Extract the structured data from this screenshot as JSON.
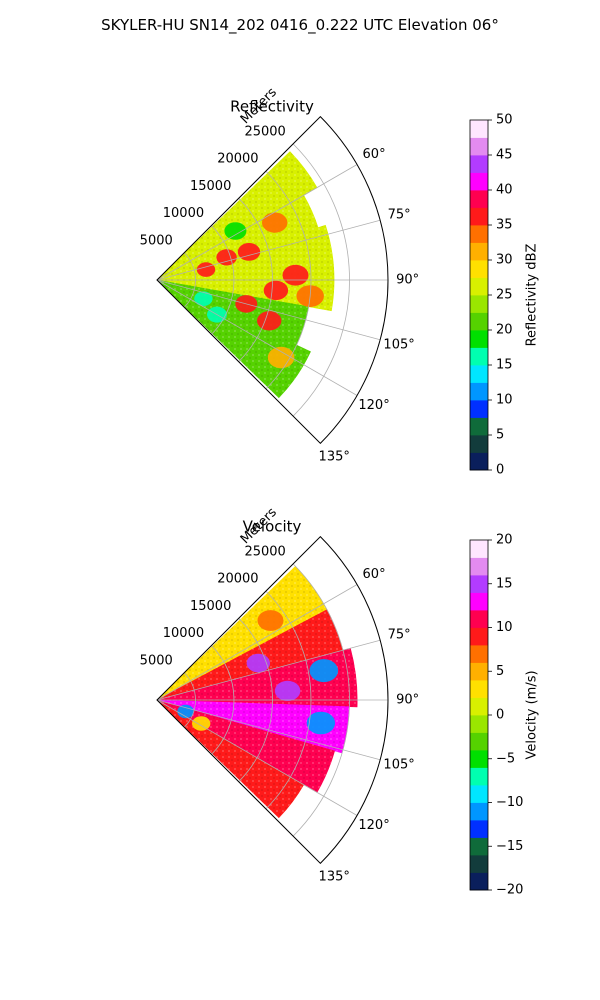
{
  "figure_title": "SKYLER-HU  SN14_202  0416_0.222 UTC Elevation 06°",
  "chart_data": [
    {
      "type": "heatmap",
      "projection": "polar-sector",
      "title": "Reflectivity",
      "radial_label": "Meters",
      "radial_ticks": [
        5000,
        10000,
        15000,
        20000,
        25000
      ],
      "radial_range": [
        0,
        30000
      ],
      "azimuth_range_deg": [
        45,
        135
      ],
      "azimuth_ticks_deg": [
        60,
        75,
        90,
        105,
        120,
        135
      ],
      "grid": true,
      "colorbar": {
        "label": "Reflectivity dBZ",
        "min": 0,
        "max": 50,
        "ticks": [
          0,
          5,
          10,
          15,
          20,
          25,
          30,
          35,
          40,
          45,
          50
        ],
        "colors": [
          "#0a1f5c",
          "#123c3c",
          "#0f6b3a",
          "#0030ff",
          "#0096ff",
          "#00e6ff",
          "#00ffb0",
          "#00e000",
          "#55d200",
          "#9ae600",
          "#d8f000",
          "#ffe000",
          "#ffb000",
          "#ff7000",
          "#ff1a1a",
          "#ff0050",
          "#ff00ff",
          "#b23cff",
          "#e38bf0",
          "#ffe6ff"
        ]
      },
      "sectors": [
        {
          "az": [
            46,
            60
          ],
          "r": [
            0,
            24000
          ],
          "level": 26
        },
        {
          "az": [
            60,
            72
          ],
          "r": [
            0,
            22000
          ],
          "level": 25
        },
        {
          "az": [
            72,
            85
          ],
          "r": [
            0,
            23000
          ],
          "level": 27
        },
        {
          "az": [
            85,
            100
          ],
          "r": [
            0,
            23000
          ],
          "level": 26
        },
        {
          "az": [
            100,
            115
          ],
          "r": [
            0,
            20000
          ],
          "level": 22
        },
        {
          "az": [
            115,
            134
          ],
          "r": [
            0,
            22000
          ],
          "level": 21
        }
      ],
      "cells": [
        {
          "az": 73,
          "r": 12500,
          "level": 37
        },
        {
          "az": 72,
          "r": 9500,
          "level": 36
        },
        {
          "az": 88,
          "r": 18000,
          "level": 35
        },
        {
          "az": 95,
          "r": 15500,
          "level": 35
        },
        {
          "az": 105,
          "r": 12000,
          "level": 36
        },
        {
          "az": 110,
          "r": 15500,
          "level": 36
        },
        {
          "az": 96,
          "r": 20000,
          "level": 34
        },
        {
          "az": 78,
          "r": 6500,
          "level": 36
        },
        {
          "az": 64,
          "r": 17000,
          "level": 33
        },
        {
          "az": 122,
          "r": 19000,
          "level": 30
        },
        {
          "az": 120,
          "r": 9000,
          "level": 17
        },
        {
          "az": 112,
          "r": 6500,
          "level": 15
        },
        {
          "az": 58,
          "r": 12000,
          "level": 19
        }
      ]
    },
    {
      "type": "heatmap",
      "projection": "polar-sector",
      "title": "Velocity",
      "radial_label": "Meters",
      "radial_ticks": [
        5000,
        10000,
        15000,
        20000,
        25000
      ],
      "radial_range": [
        0,
        30000
      ],
      "azimuth_range_deg": [
        45,
        135
      ],
      "azimuth_ticks_deg": [
        60,
        75,
        90,
        105,
        120,
        135
      ],
      "grid": true,
      "colorbar": {
        "label": "Velocity (m/s)",
        "min": -20,
        "max": 20,
        "ticks": [
          -20,
          -15,
          -10,
          -5,
          0,
          5,
          10,
          15,
          20
        ],
        "colors": [
          "#0a1f5c",
          "#123c3c",
          "#0f6b3a",
          "#0030ff",
          "#0096ff",
          "#00e6ff",
          "#00ffb0",
          "#00e000",
          "#55d200",
          "#9ae600",
          "#d8f000",
          "#ffe000",
          "#ffb000",
          "#ff7000",
          "#ff1a1a",
          "#ff0050",
          "#ff00ff",
          "#b23cff",
          "#e38bf0",
          "#ffe6ff"
        ]
      },
      "sectors": [
        {
          "az": [
            46,
            62
          ],
          "r": [
            0,
            25000
          ],
          "level": 3
        },
        {
          "az": [
            62,
            75
          ],
          "r": [
            0,
            25000
          ],
          "level": 9
        },
        {
          "az": [
            75,
            92
          ],
          "r": [
            0,
            26000
          ],
          "level": 11
        },
        {
          "az": [
            92,
            106
          ],
          "r": [
            0,
            25000
          ],
          "level": 13
        },
        {
          "az": [
            106,
            120
          ],
          "r": [
            0,
            24000
          ],
          "level": 10
        },
        {
          "az": [
            120,
            134
          ],
          "r": [
            0,
            22000
          ],
          "level": 9
        }
      ],
      "cells": [
        {
          "az": 80,
          "r": 22000,
          "level": -12
        },
        {
          "az": 98,
          "r": 21500,
          "level": -12
        },
        {
          "az": 112,
          "r": 4000,
          "level": -12
        },
        {
          "az": 70,
          "r": 14000,
          "level": 14
        },
        {
          "az": 86,
          "r": 17000,
          "level": 14
        },
        {
          "az": 118,
          "r": 6500,
          "level": 2
        },
        {
          "az": 55,
          "r": 18000,
          "level": 7
        }
      ]
    }
  ]
}
